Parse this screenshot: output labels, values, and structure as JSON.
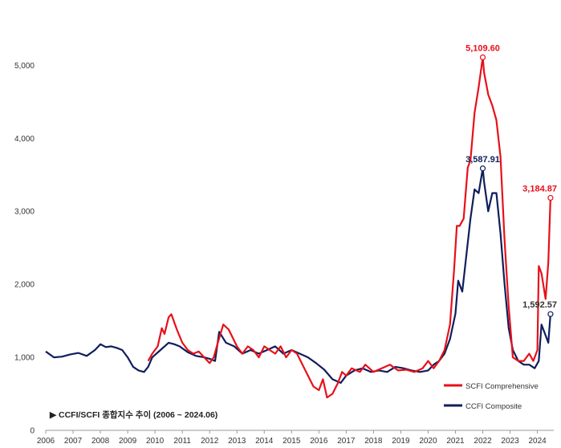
{
  "chart_data": {
    "type": "line",
    "title": "",
    "xlabel": "",
    "ylabel": "",
    "xlim": [
      2006.0,
      2024.6
    ],
    "ylim": [
      0,
      5400
    ],
    "y_ticks": [
      0,
      1000,
      2000,
      3000,
      4000,
      5000
    ],
    "y_tick_labels": [
      "0",
      "1,000",
      "2,000",
      "3,000",
      "4,000",
      "5,000"
    ],
    "x_ticks": [
      2006,
      2007,
      2008,
      2009,
      2010,
      2011,
      2012,
      2013,
      2014,
      2015,
      2016,
      2017,
      2018,
      2019,
      2020,
      2021,
      2022,
      2023,
      2024
    ],
    "x_tick_labels": [
      "2006",
      "2007",
      "2008",
      "2009",
      "2010",
      "2011",
      "2012",
      "2013",
      "2014",
      "2015",
      "2016",
      "2017",
      "2018",
      "2019",
      "2020",
      "2021",
      "2022",
      "2023",
      "2024"
    ],
    "grid": false,
    "legend_position": "bottom-right",
    "note": "▶ CCFI/SCFI 종합지수 추이 (2006 ~ 2024.06)",
    "series": [
      {
        "name": "SCFI Comprehensive",
        "color": "#e8101a",
        "x": [
          2009.75,
          2009.9,
          2010.1,
          2010.25,
          2010.35,
          2010.5,
          2010.6,
          2010.8,
          2011.0,
          2011.2,
          2011.4,
          2011.6,
          2011.8,
          2012.0,
          2012.15,
          2012.3,
          2012.5,
          2012.7,
          2013.0,
          2013.2,
          2013.4,
          2013.6,
          2013.8,
          2014.0,
          2014.2,
          2014.4,
          2014.6,
          2014.8,
          2015.0,
          2015.2,
          2015.4,
          2015.6,
          2015.8,
          2016.0,
          2016.15,
          2016.3,
          2016.5,
          2016.7,
          2016.85,
          2017.0,
          2017.2,
          2017.5,
          2017.7,
          2018.0,
          2018.3,
          2018.6,
          2018.9,
          2019.2,
          2019.5,
          2019.8,
          2020.0,
          2020.2,
          2020.4,
          2020.6,
          2020.8,
          2020.95,
          2021.05,
          2021.15,
          2021.3,
          2021.45,
          2021.55,
          2021.7,
          2021.85,
          2022.0,
          2022.05,
          2022.2,
          2022.35,
          2022.5,
          2022.65,
          2022.8,
          2022.95,
          2023.1,
          2023.3,
          2023.5,
          2023.7,
          2023.85,
          2024.0,
          2024.05,
          2024.15,
          2024.3,
          2024.4,
          2024.48
        ],
        "values": [
          950,
          1050,
          1150,
          1400,
          1320,
          1550,
          1590,
          1380,
          1200,
          1100,
          1050,
          1080,
          1000,
          920,
          1000,
          1200,
          1450,
          1380,
          1150,
          1050,
          1150,
          1100,
          1000,
          1150,
          1100,
          1050,
          1150,
          1000,
          1100,
          1050,
          900,
          750,
          600,
          550,
          700,
          450,
          500,
          650,
          800,
          750,
          850,
          800,
          900,
          800,
          850,
          900,
          820,
          830,
          800,
          850,
          950,
          850,
          950,
          1100,
          1450,
          2200,
          2800,
          2800,
          2900,
          3600,
          3700,
          4350,
          4700,
          5109.6,
          4900,
          4600,
          4450,
          4250,
          3750,
          2600,
          1700,
          1000,
          950,
          950,
          1050,
          950,
          1100,
          2250,
          2150,
          1800,
          2300,
          3184.87
        ]
      },
      {
        "name": "CCFI Composite",
        "color": "#0f1e5c",
        "x": [
          2006.0,
          2006.3,
          2006.6,
          2006.9,
          2007.2,
          2007.5,
          2007.8,
          2008.0,
          2008.2,
          2008.4,
          2008.6,
          2008.8,
          2009.0,
          2009.2,
          2009.4,
          2009.6,
          2009.75,
          2009.9,
          2010.2,
          2010.5,
          2010.7,
          2010.9,
          2011.2,
          2011.5,
          2011.8,
          2012.0,
          2012.2,
          2012.35,
          2012.6,
          2012.9,
          2013.2,
          2013.5,
          2013.8,
          2014.1,
          2014.4,
          2014.7,
          2015.0,
          2015.3,
          2015.6,
          2015.9,
          2016.2,
          2016.5,
          2016.8,
          2017.0,
          2017.3,
          2017.6,
          2017.9,
          2018.2,
          2018.5,
          2018.8,
          2019.1,
          2019.4,
          2019.7,
          2020.0,
          2020.2,
          2020.4,
          2020.6,
          2020.8,
          2021.0,
          2021.1,
          2021.25,
          2021.4,
          2021.55,
          2021.7,
          2021.85,
          2022.0,
          2022.05,
          2022.2,
          2022.35,
          2022.5,
          2022.65,
          2022.8,
          2022.95,
          2023.1,
          2023.3,
          2023.5,
          2023.7,
          2023.9,
          2024.05,
          2024.15,
          2024.3,
          2024.4,
          2024.48
        ],
        "values": [
          1080,
          1000,
          1010,
          1040,
          1060,
          1020,
          1100,
          1180,
          1140,
          1150,
          1130,
          1100,
          1000,
          870,
          820,
          800,
          870,
          1000,
          1100,
          1200,
          1180,
          1150,
          1070,
          1020,
          1000,
          980,
          950,
          1350,
          1200,
          1150,
          1050,
          1100,
          1050,
          1100,
          1150,
          1050,
          1100,
          1050,
          1000,
          920,
          830,
          700,
          650,
          750,
          820,
          850,
          800,
          820,
          800,
          870,
          850,
          820,
          800,
          820,
          900,
          950,
          1050,
          1250,
          1600,
          2050,
          1900,
          2400,
          2900,
          3300,
          3250,
          3587.91,
          3400,
          3000,
          3250,
          3250,
          2700,
          2000,
          1400,
          1100,
          950,
          900,
          900,
          850,
          950,
          1450,
          1300,
          1200,
          1592.57
        ]
      }
    ],
    "annotations": [
      {
        "text": "5,109.60",
        "x": 2022.0,
        "y": 5109.6,
        "color": "#e8101a",
        "series": "SCFI Comprehensive"
      },
      {
        "text": "3,184.87",
        "x": 2024.48,
        "y": 3184.87,
        "color": "#e8101a",
        "series": "SCFI Comprehensive"
      },
      {
        "text": "3,587.91",
        "x": 2022.0,
        "y": 3587.91,
        "color": "#0f1e5c",
        "series": "CCFI Composite"
      },
      {
        "text": "1,592.57",
        "x": 2024.48,
        "y": 1592.57,
        "color": "#333333",
        "series": "CCFI Composite"
      }
    ]
  }
}
